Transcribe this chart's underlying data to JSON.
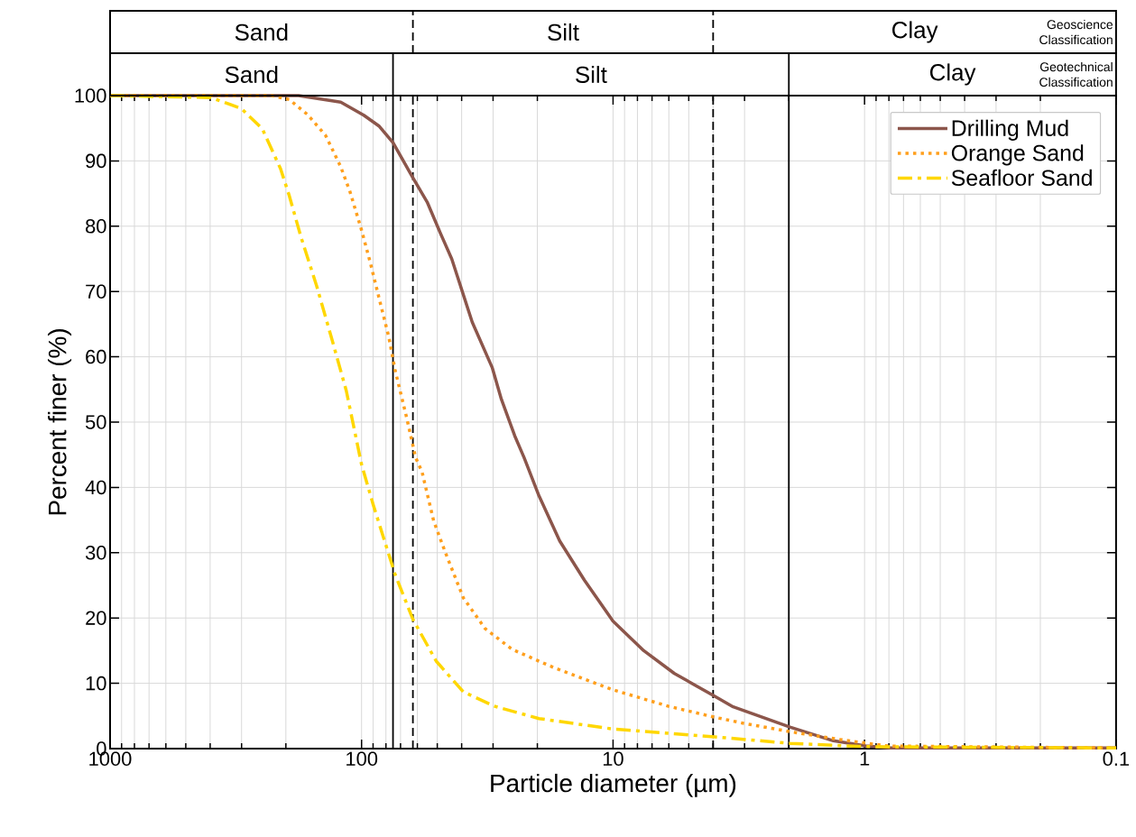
{
  "chart_data": {
    "type": "line",
    "xlabel": "Particle diameter (µm)",
    "ylabel": "Percent finer (%)",
    "xlim": [
      1000,
      0.1
    ],
    "ylim": [
      0,
      100
    ],
    "log": "x",
    "xticks": [
      1000,
      100,
      10,
      1,
      0.1
    ],
    "yticks": [
      0,
      10,
      20,
      30,
      40,
      50,
      60,
      70,
      80,
      90,
      100
    ],
    "grid": true,
    "legend": "top right",
    "series": [
      {
        "name": "Drilling Mud",
        "color": "#8c564b",
        "line_style": "solid",
        "x": [
          1000,
          178,
          121,
          98,
          85,
          75,
          62.5,
          54.7,
          48.8,
          43.8,
          36.3,
          30.2,
          27.8,
          24.6,
          22.6,
          19.7,
          16.3,
          13,
          10,
          7.55,
          5.7,
          3.94,
          3.33,
          1.98,
          1.33,
          0.99,
          0.79,
          0.1
        ],
        "values": [
          100,
          100,
          99,
          97,
          95.3,
          92.8,
          87.4,
          83.6,
          79.1,
          75,
          65.3,
          58.3,
          53.5,
          47.9,
          44.6,
          38.7,
          31.8,
          25.8,
          19.5,
          15,
          11.5,
          8,
          6.4,
          3.3,
          1.2,
          0.4,
          0.1,
          0.1
        ]
      },
      {
        "name": "Orange Sand",
        "color": "#ff9f1c",
        "line_style": "dotted",
        "x": [
          1000,
          228,
          194,
          164,
          139,
          121,
          111,
          100,
          92,
          84.7,
          78,
          73.6,
          66.2,
          61,
          57.5,
          51.7,
          46.4,
          39.4,
          32.3,
          25.2,
          17.2,
          10,
          6.04,
          3.94,
          3.05,
          1.98,
          1.26,
          0.81,
          0.1
        ],
        "values": [
          100,
          100,
          99.4,
          97.1,
          93.9,
          89.1,
          85.2,
          79.4,
          74.2,
          68.6,
          63.1,
          58,
          50.7,
          44.6,
          42.4,
          34.9,
          30,
          23.1,
          18.4,
          15.2,
          12.4,
          9,
          6.5,
          4.8,
          3.9,
          2.6,
          1.4,
          0.4,
          0.1
        ]
      },
      {
        "name": "Seafloor Sand",
        "color": "#ffd700",
        "line_style": "dashdot",
        "x": [
          1000,
          397,
          300,
          248,
          210,
          194,
          174,
          151,
          131,
          115,
          100,
          89.8,
          73.6,
          62.5,
          50.5,
          39.4,
          29.7,
          19.7,
          10,
          3.94,
          1.98,
          0.99,
          0.1
        ],
        "values": [
          100,
          99.7,
          98,
          94.9,
          88.8,
          84.7,
          78.3,
          70.9,
          62.6,
          54.8,
          43.5,
          37.3,
          26.7,
          19.8,
          13.4,
          8.7,
          6.5,
          4.6,
          3.0,
          1.8,
          0.8,
          0.3,
          0.1
        ]
      }
    ],
    "ref_lines": [
      {
        "axis": "x",
        "value": 62.5,
        "line_style": "dashed",
        "color": "#000000"
      },
      {
        "axis": "x",
        "value": 4,
        "line_style": "dashed",
        "color": "#000000"
      },
      {
        "axis": "x",
        "value": 75,
        "line_style": "solid",
        "color": "#000000"
      },
      {
        "axis": "x",
        "value": 2,
        "line_style": "solid",
        "color": "#000000"
      }
    ],
    "annotations": [
      "Sand",
      "Silt",
      "Clay",
      "Geoscience Classification",
      "Sand",
      "Silt",
      "Clay",
      "Geotechnical Classification"
    ]
  }
}
